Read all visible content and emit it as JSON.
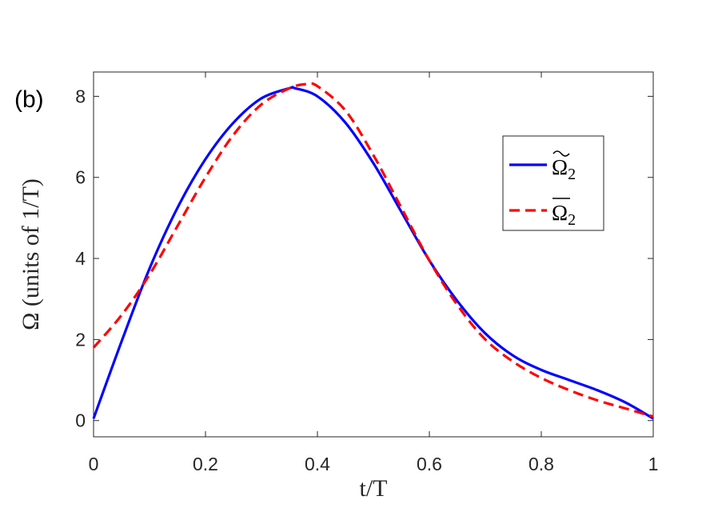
{
  "panel_label": "(b)",
  "chart_data": {
    "type": "line",
    "xlabel": "t/T",
    "ylabel": "Ω (units of 1/T)",
    "xlim": [
      0,
      1
    ],
    "ylim": [
      -0.4,
      8.6
    ],
    "x_ticks": [
      0,
      0.2,
      0.4,
      0.6,
      0.8,
      1
    ],
    "x_tick_labels": [
      "0",
      "0.2",
      "0.4",
      "0.6",
      "0.8",
      "1"
    ],
    "y_ticks": [
      0,
      2,
      4,
      6,
      8
    ],
    "y_tick_labels": [
      "0",
      "2",
      "4",
      "6",
      "8"
    ],
    "grid": false,
    "legend_position": "right",
    "series": [
      {
        "name": "Ω̃₂",
        "legend_symbol": "Ω",
        "legend_subscript": "2",
        "legend_accent": "~",
        "color": "#0000ff",
        "dash": "solid",
        "x": [
          0,
          0.05,
          0.1,
          0.15,
          0.2,
          0.25,
          0.3,
          0.35,
          0.36,
          0.4,
          0.45,
          0.5,
          0.55,
          0.6,
          0.65,
          0.7,
          0.75,
          0.8,
          0.85,
          0.9,
          0.95,
          1.0
        ],
        "values": [
          0.05,
          1.95,
          3.75,
          5.25,
          6.45,
          7.35,
          7.95,
          8.2,
          8.2,
          8.0,
          7.35,
          6.35,
          5.15,
          3.95,
          2.95,
          2.15,
          1.6,
          1.25,
          1.0,
          0.75,
          0.45,
          0.05
        ]
      },
      {
        "name": "Ω̄₂",
        "legend_symbol": "Ω",
        "legend_subscript": "2",
        "legend_accent": "bar",
        "color": "#ff0000",
        "dash": "dashed",
        "x": [
          0,
          0.05,
          0.1,
          0.15,
          0.2,
          0.25,
          0.3,
          0.35,
          0.38,
          0.4,
          0.45,
          0.5,
          0.55,
          0.6,
          0.65,
          0.7,
          0.75,
          0.8,
          0.85,
          0.9,
          0.95,
          1.0
        ],
        "values": [
          1.8,
          2.6,
          3.6,
          4.8,
          6.0,
          7.05,
          7.8,
          8.2,
          8.3,
          8.25,
          7.65,
          6.55,
          5.25,
          3.95,
          2.85,
          2.0,
          1.45,
          1.05,
          0.75,
          0.5,
          0.3,
          0.1
        ]
      }
    ]
  }
}
